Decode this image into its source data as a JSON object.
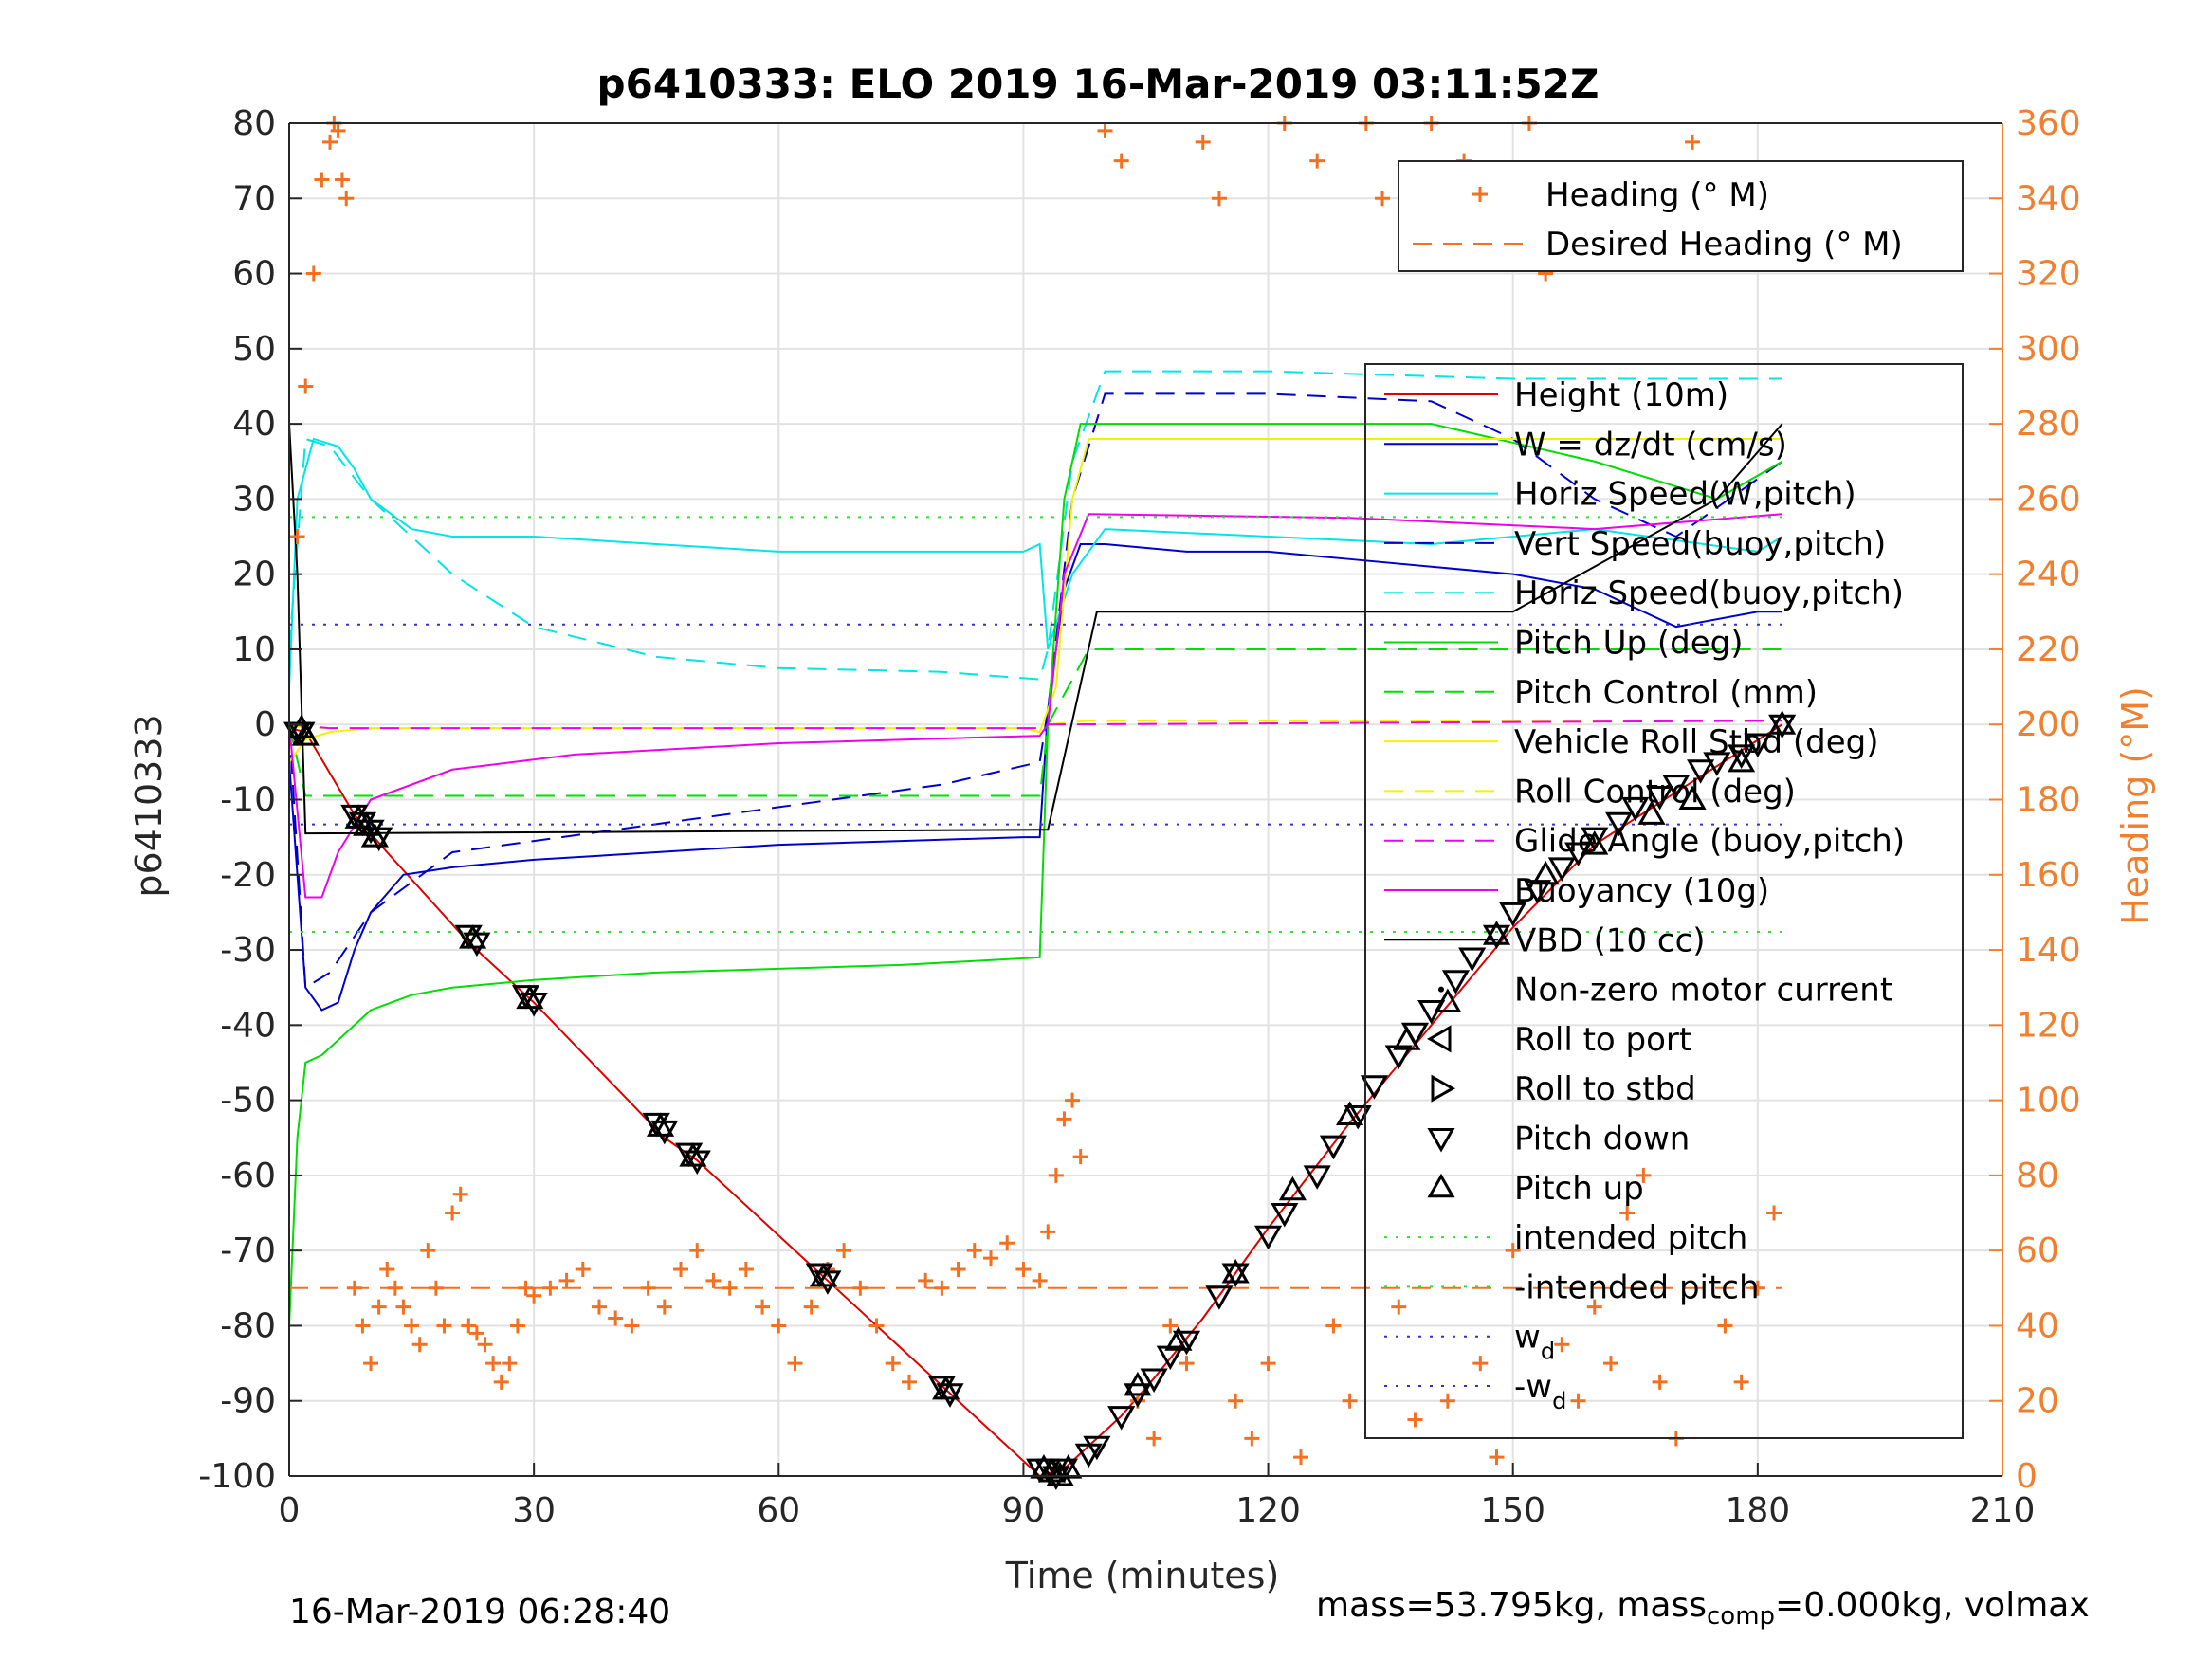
{
  "title": "p6410333: ELO 2019 16-Mar-2019 03:11:52Z",
  "ylabel_left": "p6410333",
  "ylabel_right": "Heading (°M)",
  "footer": {
    "timestamp": "16-Mar-2019 06:28:40",
    "mass_label": "mass=53.795kg, mass",
    "comp_sub": "comp",
    "mass_rest": "=0.000kg, volmax"
  },
  "colors": {
    "height": "#e00000",
    "w": "#0000cc",
    "horiz_speed": "#00e5e5",
    "pitch": "#00dd00",
    "roll": "#f2f200",
    "glide": "#ee00ee",
    "vbd": "#000000",
    "heading": "#f37021",
    "right_axis": "#f08030",
    "intended_pitch": "#33dd33",
    "wd": "#3333cc"
  },
  "chart_data": {
    "type": "line",
    "title": "p6410333: ELO 2019 16-Mar-2019 03:11:52Z",
    "xlabel": "Time (minutes)",
    "ylabel": "p6410333",
    "y2label": "Heading (°M)",
    "xlim": [
      0,
      210
    ],
    "ylim": [
      -100,
      80
    ],
    "y2lim": [
      0,
      360
    ],
    "xticks": [
      0,
      30,
      60,
      90,
      120,
      150,
      180,
      210
    ],
    "yticks": [
      -100,
      -90,
      -80,
      -70,
      -60,
      -50,
      -40,
      -30,
      -20,
      -10,
      0,
      10,
      20,
      30,
      40,
      50,
      60,
      70,
      80
    ],
    "y2ticks": [
      0,
      20,
      40,
      60,
      80,
      100,
      120,
      140,
      160,
      180,
      200,
      220,
      240,
      260,
      280,
      300,
      320,
      340,
      360
    ],
    "grid": true,
    "legend_heading": {
      "placement": "top-right",
      "entries": [
        "Heading (° M)",
        "Desired Heading (° M)"
      ]
    },
    "legend_main": {
      "placement": "right",
      "entries": [
        "Height (10m)",
        "W = dz/dt (cm/s)",
        "Horiz Speed(W,pitch)",
        "Vert Speed(buoy,pitch)",
        "Horiz Speed(buoy,pitch)",
        "Pitch Up (deg)",
        "Pitch Control (mm)",
        "Vehicle Roll Stbd (deg)",
        "Roll Control (deg)",
        "Glide Angle (buoy,pitch)",
        "Buoyancy (10g)",
        "VBD (10 cc)",
        "Non-zero motor current",
        "Roll to port",
        "Roll to stbd",
        "Pitch down",
        "Pitch up",
        "intended pitch",
        "-intended pitch",
        "w_d",
        "-w_d"
      ]
    },
    "series": [
      {
        "name": "Height (10m)",
        "x": [
          0,
          2,
          8,
          12,
          22,
          30,
          46,
          50,
          66,
          81,
          92,
          95,
          98,
          102,
          106,
          112,
          120,
          130,
          140,
          150,
          160,
          170,
          183
        ],
        "y": [
          -0.5,
          -1,
          -12,
          -17,
          -29,
          -37,
          -55,
          -58,
          -74,
          -89,
          -100,
          -99,
          -96,
          -92,
          -87,
          -79,
          -67,
          -53,
          -40,
          -27,
          -16,
          -9,
          0
        ]
      },
      {
        "name": "W = dz/dt (cm/s)",
        "x": [
          0,
          1,
          2,
          4,
          6,
          8,
          10,
          14,
          20,
          30,
          45,
          60,
          75,
          90,
          92,
          93,
          95,
          97,
          100,
          110,
          120,
          130,
          140,
          150,
          160,
          170,
          180,
          183
        ],
        "y": [
          -5,
          -20,
          -35,
          -38,
          -37,
          -30,
          -25,
          -20,
          -19,
          -18,
          -17,
          -16,
          -15.5,
          -15,
          -15,
          2,
          18,
          24,
          24,
          23,
          23,
          22,
          21,
          20,
          18,
          13,
          15,
          15
        ]
      },
      {
        "name": "Vert Speed(buoy,pitch)",
        "x": [
          0,
          2,
          5,
          10,
          20,
          40,
          60,
          80,
          92,
          93,
          96,
          100,
          120,
          140,
          150,
          160,
          170,
          183
        ],
        "y": [
          0,
          -35,
          -33,
          -25,
          -17,
          -14,
          -11,
          -8,
          -5,
          2,
          30,
          44,
          44,
          43,
          38,
          30,
          25,
          35
        ]
      },
      {
        "name": "Horiz Speed(W,pitch)",
        "x": [
          0,
          1,
          3,
          6,
          8,
          10,
          15,
          20,
          30,
          45,
          60,
          75,
          90,
          92,
          93,
          96,
          100,
          120,
          140,
          160,
          180,
          183
        ],
        "y": [
          5,
          30,
          38,
          37,
          34,
          30,
          26,
          25,
          25,
          24,
          23,
          23,
          23,
          24,
          10,
          20,
          26,
          25,
          24,
          26,
          23,
          25
        ]
      },
      {
        "name": "Horiz Speed(buoy,pitch)",
        "x": [
          0,
          2,
          5,
          10,
          20,
          30,
          45,
          60,
          80,
          92,
          93,
          96,
          100,
          120,
          150,
          183
        ],
        "y": [
          10,
          38,
          37,
          30,
          20,
          13,
          9,
          7.5,
          7,
          6,
          10,
          35,
          47,
          47,
          46,
          46
        ]
      },
      {
        "name": "Pitch Up (deg)",
        "x": [
          0,
          1,
          2,
          4,
          6,
          8,
          10,
          15,
          20,
          30,
          45,
          60,
          75,
          92,
          93,
          95,
          97,
          100,
          120,
          140,
          160,
          175,
          183
        ],
        "y": [
          -80,
          -55,
          -45,
          -44,
          -42,
          -40,
          -38,
          -36,
          -35,
          -34,
          -33,
          -32.5,
          -32,
          -31,
          0,
          30,
          40,
          40,
          40,
          40,
          35,
          30,
          35
        ]
      },
      {
        "name": "Pitch Control (mm)",
        "x": [
          0,
          2,
          92,
          93,
          98,
          183
        ],
        "y": [
          0,
          -9.5,
          -9.5,
          0,
          10,
          10
        ]
      },
      {
        "name": "Vehicle Roll Stbd (deg)",
        "x": [
          0,
          2,
          5,
          10,
          20,
          45,
          90,
          92,
          94,
          96,
          98,
          100,
          130,
          160,
          183
        ],
        "y": [
          -5,
          -2,
          -1,
          -0.5,
          -0.5,
          -0.5,
          -0.5,
          -1,
          5,
          30,
          38,
          38,
          38,
          38,
          38
        ]
      },
      {
        "name": "Roll Control (deg)",
        "x": [
          0,
          2,
          92,
          93,
          98,
          183
        ],
        "y": [
          0,
          -0.5,
          -0.5,
          0,
          0.5,
          0.5
        ]
      },
      {
        "name": "Glide Angle (buoy,pitch)",
        "x": [
          0,
          5,
          92,
          93,
          183
        ],
        "y": [
          0,
          -0.5,
          -0.5,
          0,
          0.5
        ]
      },
      {
        "name": "Buoyancy (10g)",
        "x": [
          0,
          2,
          4,
          6,
          10,
          20,
          35,
          60,
          92,
          93,
          95,
          98,
          130,
          160,
          183
        ],
        "y": [
          0,
          -23,
          -23,
          -17,
          -10,
          -6,
          -4,
          -2.5,
          -1.5,
          0,
          20,
          28,
          27.5,
          26,
          28
        ]
      },
      {
        "name": "VBD (10 cc)",
        "x": [
          0,
          1,
          2,
          92,
          93,
          99,
          150,
          175,
          183
        ],
        "y": [
          40,
          20,
          -14.5,
          -14,
          -14,
          15,
          15,
          30,
          40
        ]
      },
      {
        "name": "intended pitch",
        "x": [
          0,
          183
        ],
        "y": [
          27.6,
          27.6
        ]
      },
      {
        "name": "-intended pitch",
        "x": [
          0,
          183
        ],
        "y": [
          -27.6,
          -27.6
        ]
      },
      {
        "name": "w_d",
        "x": [
          0,
          183
        ],
        "y": [
          13.3,
          13.3
        ]
      },
      {
        "name": "-w_d",
        "x": [
          0,
          183
        ],
        "y": [
          -13.3,
          -13.3
        ]
      },
      {
        "name": "Desired Heading (° M)",
        "axis": "right",
        "x": [
          0,
          183
        ],
        "y": [
          50,
          50
        ]
      },
      {
        "name": "Heading (° M)",
        "axis": "right",
        "type": "scatter",
        "x": [
          1,
          2,
          3,
          4,
          5,
          5.5,
          6,
          6.5,
          7,
          8,
          9,
          10,
          11,
          12,
          13,
          14,
          15,
          16,
          17,
          18,
          19,
          20,
          21,
          22,
          23,
          24,
          25,
          26,
          27,
          28,
          29,
          30,
          32,
          34,
          36,
          38,
          40,
          42,
          44,
          46,
          48,
          50,
          52,
          54,
          56,
          58,
          60,
          62,
          64,
          66,
          68,
          70,
          72,
          74,
          76,
          78,
          80,
          82,
          84,
          86,
          88,
          90,
          92,
          93,
          94,
          95,
          96,
          97,
          100,
          102,
          104,
          106,
          108,
          110,
          112,
          114,
          116,
          118,
          120,
          122,
          124,
          126,
          128,
          130,
          132,
          134,
          136,
          138,
          140,
          142,
          144,
          146,
          148,
          150,
          152,
          154,
          156,
          158,
          160,
          162,
          164,
          166,
          168,
          170,
          172,
          174,
          176,
          178,
          180,
          182
        ],
        "y": [
          250,
          290,
          320,
          345,
          355,
          360,
          358,
          345,
          340,
          50,
          40,
          30,
          45,
          55,
          50,
          45,
          40,
          35,
          60,
          50,
          40,
          70,
          75,
          40,
          38,
          35,
          30,
          25,
          30,
          40,
          50,
          48,
          50,
          52,
          55,
          45,
          42,
          40,
          50,
          45,
          55,
          60,
          52,
          50,
          55,
          45,
          40,
          30,
          45,
          55,
          60,
          50,
          40,
          30,
          25,
          52,
          50,
          55,
          60,
          58,
          62,
          55,
          52,
          65,
          80,
          95,
          100,
          85,
          358,
          350,
          20,
          10,
          40,
          30,
          355,
          340,
          20,
          10,
          30,
          360,
          5,
          350,
          40,
          20,
          360,
          340,
          45,
          15,
          360,
          20,
          350,
          30,
          5,
          60,
          360,
          320,
          35,
          20,
          45,
          30,
          70,
          80,
          25,
          10,
          355,
          330,
          40,
          25,
          50,
          70
        ]
      },
      {
        "name": "Pitch down",
        "type": "marker",
        "x": [
          1,
          1.5,
          8,
          9,
          10,
          11,
          22,
          23,
          29,
          30,
          45,
          46,
          49,
          50,
          65,
          66,
          80,
          81,
          92,
          93,
          94,
          95,
          98,
          99,
          102,
          104,
          106,
          108,
          110,
          114,
          116,
          120,
          122,
          126,
          128,
          131,
          133,
          136,
          138,
          140,
          143,
          145,
          148,
          150,
          153,
          156,
          158,
          160,
          163,
          165,
          168,
          170,
          173,
          175,
          178,
          180,
          183
        ],
        "y": [
          -1,
          -1,
          -12,
          -13,
          -14,
          -15,
          -28,
          -29,
          -36,
          -37,
          -53,
          -54,
          -57,
          -58,
          -73,
          -74,
          -88,
          -89,
          -99,
          -99,
          -100,
          -99,
          -97,
          -96,
          -92,
          -89,
          -87,
          -84,
          -82,
          -76,
          -73,
          -68,
          -65,
          -60,
          -56,
          -52,
          -48,
          -44,
          -41,
          -38,
          -34,
          -31,
          -28,
          -25,
          -22,
          -19,
          -17,
          -15,
          -13,
          -11,
          -9.5,
          -8,
          -6,
          -5,
          -4,
          -2.5,
          0
        ]
      },
      {
        "name": "Pitch up",
        "type": "marker",
        "x": [
          1.5,
          2,
          8.5,
          9.5,
          10.5,
          22.5,
          29.5,
          45.5,
          49.5,
          65.5,
          80.5,
          92.5,
          93.5,
          94.5,
          95.5,
          104,
          109,
          116,
          123,
          130,
          137,
          142,
          148,
          154,
          160,
          167,
          172,
          178,
          183
        ],
        "y": [
          -0.5,
          -1.5,
          -12.5,
          -13.5,
          -15,
          -28.5,
          -36.5,
          -53.5,
          -57.5,
          -73.5,
          -88.5,
          -99,
          -99.5,
          -100,
          -99,
          -88,
          -82,
          -73,
          -62,
          -52,
          -42,
          -37,
          -28,
          -20,
          -16,
          -12,
          -10,
          -5,
          0
        ]
      }
    ]
  }
}
